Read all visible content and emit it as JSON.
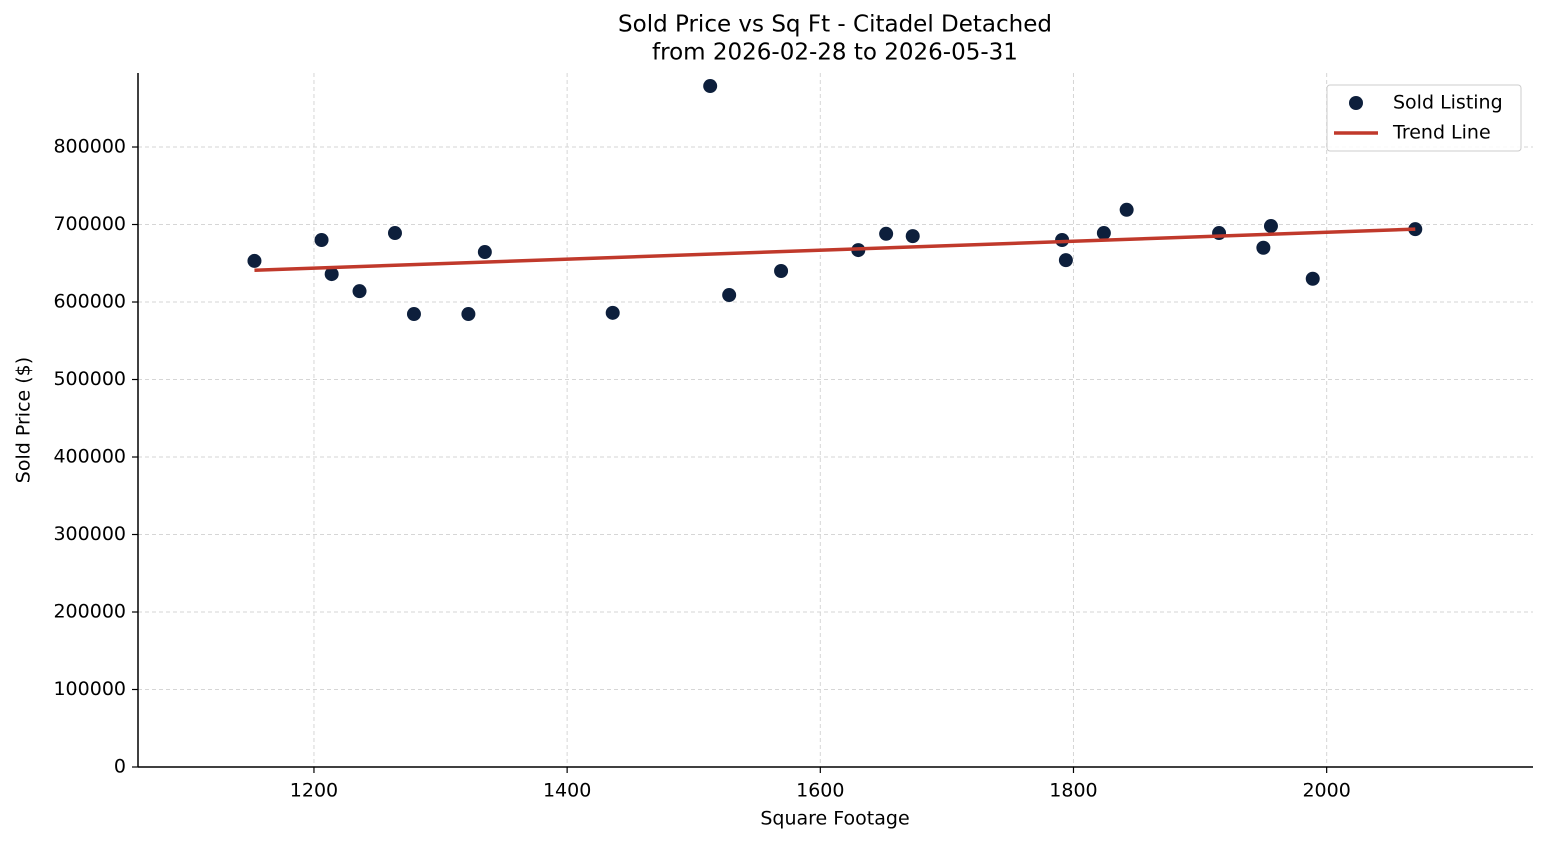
{
  "chart_data": {
    "type": "scatter",
    "title": "Sold Price vs Sq Ft - Citadel Detached",
    "subtitle": "from 2026-02-28 to 2026-05-31",
    "x_label": "Square Footage",
    "y_label": "Sold Price ($)",
    "xlim": [
      1061,
      2163
    ],
    "ylim": [
      0,
      895500
    ],
    "xticks": [
      1200,
      1400,
      1600,
      1800,
      2000
    ],
    "yticks": [
      0,
      100000,
      200000,
      300000,
      400000,
      500000,
      600000,
      700000,
      800000
    ],
    "grid": true,
    "legend": "upper right",
    "series": [
      {
        "name": "Sold Listing",
        "type": "scatter",
        "color": "#0d1f3c",
        "x": [
          1153,
          1206,
          1214,
          1236,
          1264,
          1279,
          1322,
          1335,
          1436,
          1513,
          1528,
          1569,
          1630,
          1652,
          1673,
          1791,
          1794,
          1824,
          1842,
          1915,
          1950,
          1956,
          1989,
          2070
        ],
        "values": [
          653000,
          680000,
          636000,
          614000,
          689000,
          584500,
          584500,
          664500,
          586000,
          878700,
          609000,
          640000,
          667000,
          688000,
          685000,
          680000,
          654000,
          689000,
          719000,
          689000,
          670000,
          698000,
          630000,
          694000
        ]
      },
      {
        "name": "Trend Line",
        "type": "line",
        "color": "#c0392b",
        "x": [
          1153,
          2070
        ],
        "values": [
          641000,
          694000
        ]
      }
    ]
  }
}
